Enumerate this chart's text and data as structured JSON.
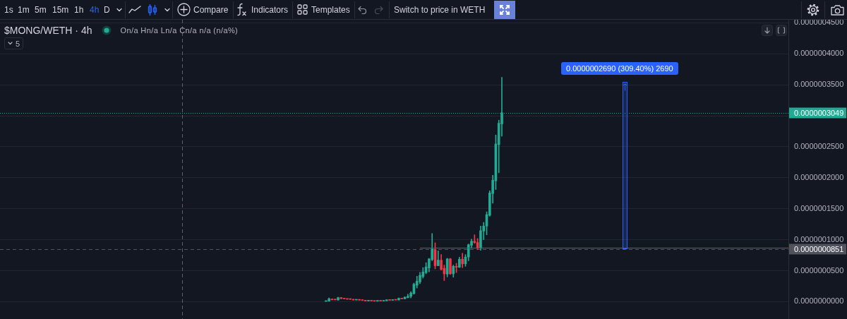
{
  "chart_data": {
    "type": "candlestick",
    "title": "$MONG/WETH · 4h",
    "categories": [
      null,
      null,
      null,
      null,
      null,
      null,
      null,
      null,
      null,
      null,
      null,
      null,
      null,
      null,
      null,
      null,
      null,
      null,
      null,
      null,
      null,
      null,
      null,
      null,
      null,
      null,
      null,
      null,
      null,
      null,
      null,
      null,
      null,
      null,
      null,
      null,
      null,
      null,
      null,
      null,
      null,
      null,
      null,
      null,
      null,
      null,
      null,
      null,
      null,
      null,
      null,
      null,
      null,
      null,
      null,
      null,
      null,
      null,
      null,
      null,
      null,
      null,
      null,
      null,
      null,
      null,
      null,
      null,
      null,
      null,
      null,
      null,
      null,
      null,
      null,
      null,
      null,
      null,
      null,
      null,
      null,
      null,
      null,
      null,
      null,
      null,
      null,
      null,
      null,
      null,
      null,
      null,
      null,
      null,
      null,
      null,
      null,
      null,
      null,
      null,
      null,
      null,
      null,
      null,
      null,
      null,
      null,
      null,
      null,
      null,
      null,
      null,
      null,
      null,
      null,
      null,
      null,
      null,
      null,
      null,
      null,
      null,
      null,
      null,
      null,
      null,
      null,
      null,
      null,
      null,
      null,
      null,
      null,
      null,
      null,
      null,
      null,
      null,
      null,
      null,
      null,
      null,
      null,
      null,
      null,
      null,
      null,
      null,
      null,
      null,
      null,
      null,
      null,
      null,
      null,
      null,
      null,
      null,
      null,
      null,
      null,
      null,
      null,
      null,
      null,
      null,
      null,
      null,
      null,
      null,
      null,
      null,
      null,
      null,
      null,
      null,
      null,
      null,
      null,
      null,
      null,
      null,
      null,
      null,
      null,
      null,
      null,
      null,
      null,
      null,
      null,
      null,
      null,
      null,
      null,
      null,
      null,
      null,
      null,
      null,
      null,
      null,
      null,
      null,
      null,
      null,
      null,
      null,
      null,
      null,
      null,
      null,
      null,
      null,
      null,
      null,
      null,
      null,
      null,
      null,
      null,
      null,
      null,
      null,
      null,
      null,
      null,
      null,
      null,
      null,
      null,
      null,
      null,
      null,
      null,
      null,
      null,
      null,
      null,
      null,
      null,
      null,
      null,
      null,
      null,
      null,
      null,
      null,
      null,
      null,
      null,
      null,
      null,
      null,
      null,
      null,
      null,
      null,
      null,
      null
    ],
    "ohlc": [
      null,
      null,
      null,
      null,
      null,
      null,
      null,
      null,
      null,
      null,
      null,
      null,
      null,
      null,
      null,
      null,
      null,
      null,
      null,
      null,
      null,
      null,
      null,
      null,
      null,
      null,
      null,
      null,
      null,
      null,
      null,
      null,
      null,
      null,
      null,
      null,
      null,
      null,
      null,
      null,
      null,
      null,
      null,
      null,
      null,
      null,
      null,
      null,
      null,
      null,
      null,
      null,
      null,
      null,
      null,
      null,
      null,
      null,
      null,
      null,
      null,
      null,
      null,
      null,
      null,
      null,
      null,
      null,
      null,
      null,
      null,
      null,
      null,
      null,
      null,
      null,
      null,
      null,
      null,
      null,
      null,
      null,
      null,
      null,
      null,
      null,
      null,
      null,
      null,
      null,
      null,
      null,
      null,
      null,
      null,
      null,
      null,
      null,
      null,
      null,
      null,
      null,
      null,
      null,
      null,
      null,
      null,
      [
        4e-10,
        1.5e-09,
        0,
        1.1e-09
      ],
      [
        8e-10,
        6e-09,
        5e-10,
        4.6e-09
      ],
      [
        4.2e-09,
        4.6e-09,
        2.7e-09,
        3e-09
      ],
      [
        3.5e-09,
        3.8e-09,
        2.7e-09,
        3e-09
      ],
      [
        2.7e-09,
        7.2e-09,
        2.3e-09,
        6.5e-09
      ],
      [
        6.5e-09,
        6.8e-09,
        4.5e-09,
        5e-09
      ],
      [
        5e-09,
        5.3e-09,
        4.2e-09,
        4.5e-09
      ],
      [
        4.5e-09,
        4.8e-09,
        3.7e-09,
        4e-09
      ],
      [
        4.2e-09,
        4.5e-09,
        3.5e-09,
        3.8e-09
      ],
      [
        3.8e-09,
        4e-09,
        2.5e-09,
        2.7e-09
      ],
      [
        2.7e-09,
        3.2e-09,
        2.5e-09,
        3e-09
      ],
      [
        3e-09,
        3.2e-09,
        2.4e-09,
        2.6e-09
      ],
      [
        2.6e-09,
        2.8e-09,
        1.8e-09,
        2e-09
      ],
      [
        2.2e-09,
        2.4e-09,
        1e-09,
        1.2e-09
      ],
      [
        1.2e-09,
        2e-09,
        1e-09,
        1.8e-09
      ],
      [
        1.8e-09,
        2e-09,
        1e-09,
        1.2e-09
      ],
      [
        1.2e-09,
        1.4e-09,
        6e-10,
        8e-10
      ],
      [
        8e-10,
        1.7e-09,
        6e-10,
        1.5e-09
      ],
      [
        1.5e-09,
        1.7e-09,
        8e-10,
        1e-09
      ],
      [
        1e-09,
        1.7e-09,
        8e-10,
        1.5e-09
      ],
      [
        1.5e-09,
        3.2e-09,
        1.3e-09,
        3e-09
      ],
      [
        3e-09,
        3.3e-09,
        2e-09,
        2.2e-09
      ],
      [
        2.2e-09,
        3.5e-09,
        2e-09,
        3.2e-09
      ],
      [
        3.2e-09,
        3.5e-09,
        2.5e-09,
        2.7e-09
      ],
      [
        2.7e-09,
        6e-09,
        2.5e-09,
        5.5e-09
      ],
      [
        5.5e-09,
        5.8e-09,
        4.3e-09,
        4.5e-09
      ],
      [
        4.5e-09,
        8e-09,
        4.3e-09,
        7.2e-09
      ],
      [
        6.5e-09,
        1.2e-08,
        6e-09,
        8.5e-09
      ],
      [
        8.5e-09,
        1.6e-08,
        6e-09,
        1.4e-08
      ],
      [
        1.3e-08,
        3e-08,
        1.2e-08,
        2.8e-08
      ],
      [
        2.65e-08,
        4.1e-08,
        2.2e-08,
        3.3e-08
      ],
      [
        3.2e-08,
        4.75e-08,
        2.9e-08,
        4.25e-08
      ],
      [
        4.05e-08,
        5.5e-08,
        3.8e-08,
        4.8e-08
      ],
      [
        4.7e-08,
        6.3e-08,
        4.5e-08,
        5.6e-08
      ],
      [
        5.45e-08,
        7e-08,
        4.8e-08,
        6.9e-08
      ],
      [
        6.8e-08,
        1.1e-07,
        6.6e-08,
        8.5e-08
      ],
      [
        8.4e-08,
        9.5e-08,
        5.3e-08,
        5.8e-08
      ],
      [
        5.8e-08,
        8.2e-08,
        5.8e-08,
        6.7e-08
      ],
      [
        6.7e-08,
        7.6e-08,
        5.1e-08,
        5.2e-08
      ],
      [
        5.4e-08,
        5.9e-08,
        3.4e-08,
        4.5e-08
      ],
      [
        4.45e-08,
        7e-08,
        4e-08,
        6.9e-08
      ],
      [
        6.9e-08,
        7e-08,
        4.4e-08,
        4.5e-08
      ],
      [
        4.5e-08,
        5.9e-08,
        3.95e-08,
        5.7e-08
      ],
      [
        5.7e-08,
        6.2e-08,
        4.7e-08,
        5.55e-08
      ],
      [
        5.55e-08,
        7.2e-08,
        5.5e-08,
        6.85e-08
      ],
      [
        6.85e-08,
        7.8e-08,
        5.5e-08,
        6.1e-08
      ],
      [
        6.1e-08,
        7.6e-08,
        5.7e-08,
        7.2e-08
      ],
      [
        7.2e-08,
        9.3e-08,
        6.6e-08,
        9.2e-08
      ],
      [
        9.1e-08,
        1.01e-07,
        8.6e-08,
        9.75e-08
      ],
      [
        9.75e-08,
        1.08e-07,
        9.4e-08,
        9.55e-08
      ],
      [
        9.55e-08,
        1.02e-07,
        8.4e-08,
        8.75e-08
      ],
      [
        8.75e-08,
        1.22e-07,
        8.3e-08,
        1.145e-07
      ],
      [
        1.14e-07,
        1.28e-07,
        1e-07,
        1.22e-07
      ],
      [
        1.22e-07,
        1.45e-07,
        1.08e-07,
        1.405e-07
      ],
      [
        1.395e-07,
        1.79e-07,
        1.38e-07,
        1.755e-07
      ],
      [
        1.745e-07,
        2.04e-07,
        1.59e-07,
        1.96e-07
      ],
      [
        1.95e-07,
        2.69e-07,
        1.81e-07,
        2.545e-07
      ],
      [
        2.535e-07,
        2.93e-07,
        2.08e-07,
        2.88e-07
      ],
      [
        2.87e-07,
        3.62e-07,
        2.67e-07,
        3.049e-07
      ],
      null,
      null,
      null,
      null,
      null,
      null,
      null,
      null,
      null,
      null,
      null,
      null,
      null,
      null,
      null,
      null,
      null,
      null,
      null,
      null,
      null,
      null,
      null,
      null,
      null,
      null,
      null,
      null,
      null,
      null,
      null,
      null,
      null,
      null,
      null,
      null,
      null,
      null,
      null,
      null,
      null,
      null,
      null,
      null,
      null,
      null,
      null,
      null,
      null,
      null,
      null,
      null,
      null,
      null,
      null,
      null,
      null,
      null,
      null,
      null,
      null,
      null,
      null,
      null,
      null,
      null,
      null,
      null,
      null,
      null,
      null,
      null,
      null,
      null,
      null,
      null,
      null,
      null,
      null,
      null,
      null,
      null,
      null,
      null,
      null,
      null,
      null,
      null,
      null,
      null,
      null,
      null,
      null,
      null
    ],
    "colors": [
      null,
      null,
      null,
      null,
      null,
      null,
      null,
      null,
      null,
      null,
      null,
      null,
      null,
      null,
      null,
      null,
      null,
      null,
      null,
      null,
      null,
      null,
      null,
      null,
      null,
      null,
      null,
      null,
      null,
      null,
      null,
      null,
      null,
      null,
      null,
      null,
      null,
      null,
      null,
      null,
      null,
      null,
      null,
      null,
      null,
      null,
      null,
      null,
      null,
      null,
      null,
      null,
      null,
      null,
      null,
      null,
      null,
      null,
      null,
      null,
      null,
      null,
      null,
      null,
      null,
      null,
      null,
      null,
      null,
      null,
      null,
      null,
      null,
      null,
      null,
      null,
      null,
      null,
      null,
      null,
      null,
      null,
      null,
      null,
      null,
      null,
      null,
      null,
      null,
      null,
      null,
      null,
      null,
      null,
      null,
      null,
      null,
      null,
      null,
      null,
      null,
      null,
      null,
      null,
      null,
      null,
      null,
      "#22ab94",
      "#22ab94",
      "#f23645",
      "#f23645",
      "#22ab94",
      "#f23645",
      "#f23645",
      "#f23645",
      "#f23645",
      "#f23645",
      "#22ab94",
      "#f23645",
      "#f23645",
      "#f23645",
      "#22ab94",
      "#f23645",
      "#f23645",
      "#22ab94",
      "#f23645",
      "#22ab94",
      "#22ab94",
      "#f23645",
      "#22ab94",
      "#f23645",
      "#22ab94",
      "#f23645",
      "#22ab94",
      "#22ab94",
      "#22ab94",
      "#22ab94",
      "#22ab94",
      "#22ab94",
      "#22ab94",
      "#22ab94",
      "#22ab94",
      "#22ab94",
      "#f23645",
      "#22ab94",
      "#f23645",
      "#f23645",
      "#22ab94",
      "#f23645",
      "#22ab94",
      "#f23645",
      "#22ab94",
      "#f23645",
      "#22ab94",
      "#22ab94",
      "#22ab94",
      "#f23645",
      "#f23645",
      "#22ab94",
      "#22ab94",
      "#22ab94",
      "#22ab94",
      "#22ab94",
      "#22ab94",
      "#22ab94",
      "#22ab94",
      null,
      null,
      null,
      null,
      null,
      null,
      null,
      null,
      null,
      null,
      null,
      null,
      null,
      null,
      null,
      null,
      null,
      null,
      null,
      null,
      null,
      null,
      null,
      null,
      null,
      null,
      null,
      null,
      null,
      null,
      null,
      null,
      null,
      null,
      null,
      null,
      null,
      null,
      null,
      null,
      null,
      null,
      null,
      null,
      null,
      null,
      null,
      null,
      null,
      null,
      null,
      null,
      null,
      null,
      null,
      null,
      null,
      null,
      null,
      null,
      null,
      null,
      null,
      null,
      null,
      null,
      null,
      null,
      null,
      null,
      null,
      null,
      null,
      null,
      null,
      null,
      null,
      null,
      null,
      null,
      null,
      null,
      null,
      null,
      null,
      null,
      null,
      null,
      null,
      null,
      null,
      null,
      null,
      null
    ],
    "ylim": [
      -2.8e-08,
      4.55e-07
    ],
    "yticks": [
      {
        "value": 0,
        "label": "0.0000000000"
      },
      {
        "value": 5e-08,
        "label": "0.0000000500"
      },
      {
        "value": 1e-07,
        "label": "0.0000001000"
      },
      {
        "value": 1.5e-07,
        "label": "0.0000001500"
      },
      {
        "value": 2e-07,
        "label": "0.0000002000"
      },
      {
        "value": 2.5e-07,
        "label": "0.0000002500"
      },
      {
        "value": 3e-07,
        "label": null
      },
      {
        "value": 3.5e-07,
        "label": "0.0000003500"
      },
      {
        "value": 4e-07,
        "label": "0.0000004000"
      },
      {
        "value": 4.5e-07,
        "label": "0.0000004500"
      }
    ],
    "ref_lines": [
      {
        "axis": "y",
        "value": 3.049e-07,
        "label": "0.0000003049",
        "color": "#22ab94",
        "line_style": "dotted"
      },
      {
        "axis": "y",
        "value": 8.51e-08,
        "label": "0.0000000851",
        "color": "#50535e",
        "line_style": "dashed"
      }
    ],
    "annotations": [
      "1s",
      "1m",
      "5m",
      "15m",
      "1h",
      "4h",
      "D",
      "Compare",
      "Indicators",
      "Templates",
      "Switch to price in WETH",
      "On/a Hn/a Ln/a Cn/a n/a (n/a%)",
      "5",
      "0.0000002690 (309.40%) 2690"
    ],
    "grid": "y",
    "tick_labels": "y"
  }
}
